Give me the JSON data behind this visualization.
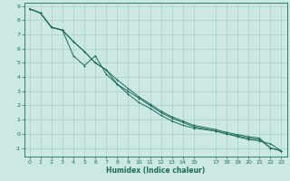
{
  "xlabel": "Humidex (Indice chaleur)",
  "background_color": "#cce8e2",
  "grid_color": "#a8cfc9",
  "line_color": "#1a6b5a",
  "xlim": [
    -0.5,
    23.5
  ],
  "ylim": [
    -1.6,
    9.2
  ],
  "xticks": [
    0,
    1,
    2,
    3,
    4,
    5,
    6,
    7,
    8,
    9,
    10,
    11,
    12,
    13,
    14,
    15,
    17,
    18,
    19,
    20,
    21,
    22,
    23
  ],
  "yticks": [
    -1,
    0,
    1,
    2,
    3,
    4,
    5,
    6,
    7,
    8,
    9
  ],
  "line1_x": [
    0,
    1,
    2,
    3,
    4,
    5,
    6,
    7,
    8,
    9,
    10,
    11,
    12,
    13,
    14,
    15,
    17,
    18,
    19,
    20,
    21,
    22,
    23
  ],
  "line1_y": [
    8.8,
    8.5,
    7.5,
    7.3,
    6.5,
    5.8,
    5.0,
    4.5,
    3.8,
    3.2,
    2.6,
    2.1,
    1.6,
    1.2,
    0.9,
    0.6,
    0.3,
    0.1,
    -0.05,
    -0.2,
    -0.3,
    -1.0,
    -1.2
  ],
  "line2_x": [
    0,
    1,
    2,
    3,
    4,
    5,
    6,
    7,
    8,
    9,
    10,
    11,
    12,
    13,
    14,
    15,
    17,
    18,
    19,
    20,
    21,
    22,
    23
  ],
  "line2_y": [
    8.8,
    8.5,
    7.5,
    7.3,
    5.5,
    4.8,
    5.5,
    4.2,
    3.5,
    2.8,
    2.2,
    1.8,
    1.3,
    0.9,
    0.6,
    0.4,
    0.2,
    0.0,
    -0.15,
    -0.3,
    -0.4,
    -1.0,
    -1.2
  ],
  "line3_x": [
    0,
    1,
    2,
    3,
    4,
    5,
    6,
    7,
    8,
    9,
    10,
    11,
    12,
    13,
    14,
    15,
    17,
    18,
    19,
    20,
    21,
    22,
    23
  ],
  "line3_y": [
    8.8,
    8.5,
    7.5,
    7.3,
    6.5,
    5.8,
    5.0,
    4.5,
    3.5,
    3.0,
    2.5,
    2.0,
    1.5,
    1.1,
    0.8,
    0.5,
    0.2,
    0.0,
    -0.2,
    -0.4,
    -0.5,
    -0.7,
    -1.2
  ]
}
